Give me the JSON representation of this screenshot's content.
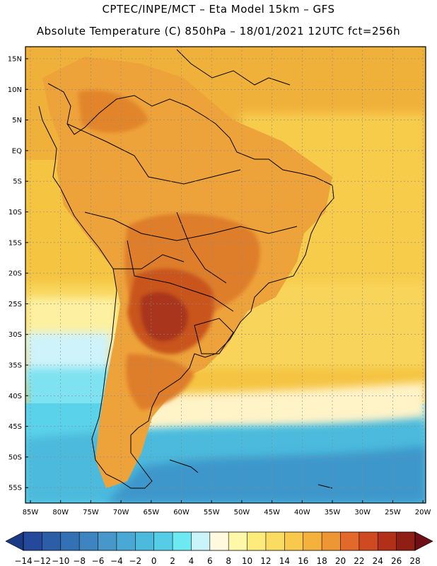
{
  "header": {
    "line1": "CPTEC/INPE/MCT –  Eta Model 15km – GFS",
    "line2": "Absolute Temperature (C) 850hPa – 18/01/2021 12UTC fct=256h"
  },
  "axes": {
    "lat_labels": [
      "15N",
      "10N",
      "5N",
      "EQ",
      "5S",
      "10S",
      "15S",
      "20S",
      "25S",
      "30S",
      "35S",
      "40S",
      "45S",
      "50S",
      "55S"
    ],
    "lon_labels": [
      "85W",
      "80W",
      "75W",
      "70W",
      "65W",
      "60W",
      "55W",
      "50W",
      "45W",
      "40W",
      "35W",
      "30W",
      "25W",
      "20W"
    ]
  },
  "colorbar": {
    "labels": [
      "-14",
      "-12",
      "-10",
      "-8",
      "-6",
      "-4",
      "-2",
      "0",
      "2",
      "4",
      "6",
      "8",
      "10",
      "12",
      "14",
      "16",
      "18",
      "20",
      "22",
      "24",
      "26",
      "28"
    ],
    "under_color": "#1b3a86",
    "over_color": "#6e0f16",
    "colors": [
      "#24499a",
      "#2c5ea8",
      "#3471b4",
      "#3d84c0",
      "#4797cb",
      "#4aa9d4",
      "#4cbadc",
      "#55cde6",
      "#6de9f2",
      "#cbf3fa",
      "#fff9e0",
      "#fff8a8",
      "#fdeb7c",
      "#fbdc63",
      "#f8c94b",
      "#f4b23d",
      "#ee9534",
      "#e2692a",
      "#cf4a20",
      "#b23018",
      "#8f1e14"
    ]
  },
  "colors": {
    "ocean_north": "#f7c743",
    "ocean_mid": "#fbd964",
    "land": "#eea33a",
    "hot_core": "#c9541f",
    "cold_sea": "#5ad2ea",
    "deep_cold": "#3f9fd0"
  }
}
